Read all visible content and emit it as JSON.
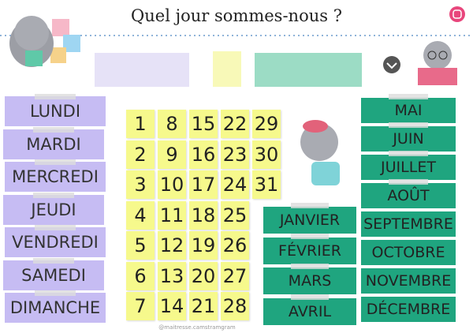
{
  "header": {
    "title": "Quel jour sommes-nous ?"
  },
  "days": [
    "LUNDI",
    "MARDI",
    "MERCREDI",
    "JEUDI",
    "VENDREDI",
    "SAMEDI",
    "DIMANCHE"
  ],
  "dates": [
    1,
    2,
    3,
    4,
    5,
    6,
    7,
    8,
    9,
    10,
    11,
    12,
    13,
    14,
    15,
    16,
    17,
    18,
    19,
    20,
    21,
    22,
    23,
    24,
    25,
    26,
    27,
    28,
    29,
    30,
    31
  ],
  "months_left": [
    "JANVIER",
    "FÉVRIER",
    "MARS",
    "AVRIL"
  ],
  "months_right": [
    "MAI",
    "JUIN",
    "JUILLET",
    "AOÛT",
    "SEPTEMBRE",
    "OCTOBRE",
    "NOVEMBRE",
    "DÉCEMBRE"
  ],
  "credit": "@maitresse.camstramgram"
}
